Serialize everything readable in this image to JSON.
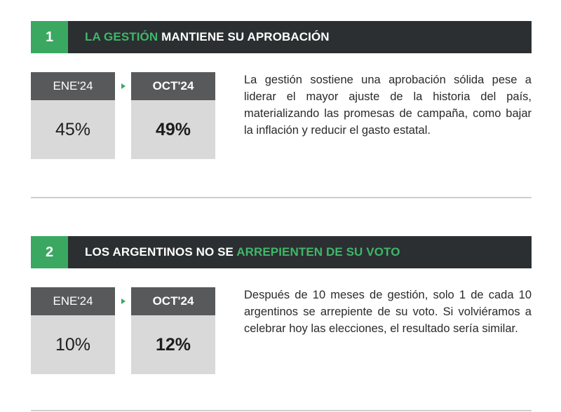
{
  "sections": [
    {
      "number": "1",
      "title_highlight": "LA GESTIÓN",
      "title_rest": " MANTIENE SU APROBACIÓN",
      "before_label": "ENE'24",
      "before_value": "45%",
      "after_label": "OCT'24",
      "after_value": "49%",
      "text": "La gestión sostiene una aprobación sólida pese a liderar el mayor ajuste de la historia del país, materializando las promesas de campaña, como bajar la inflación y reducir el gasto estatal."
    },
    {
      "number": "2",
      "title_start": "LOS ARGENTINOS NO SE ",
      "title_highlight": "ARREPIENTEN DE SU VOTO",
      "before_label": "ENE'24",
      "before_value": "10%",
      "after_label": "OCT'24",
      "after_value": "12%",
      "text": "Después de 10 meses de gestión, solo 1 de cada 10 argentinos se arrepiente de su voto. Si volviéramos a celebrar hoy las elecciones, el resultado sería similar."
    }
  ],
  "colors": {
    "accent_green": "#3aa861",
    "header_dark": "#2b2f31",
    "label_gray": "#58595b",
    "value_gray": "#d9d9d9"
  }
}
